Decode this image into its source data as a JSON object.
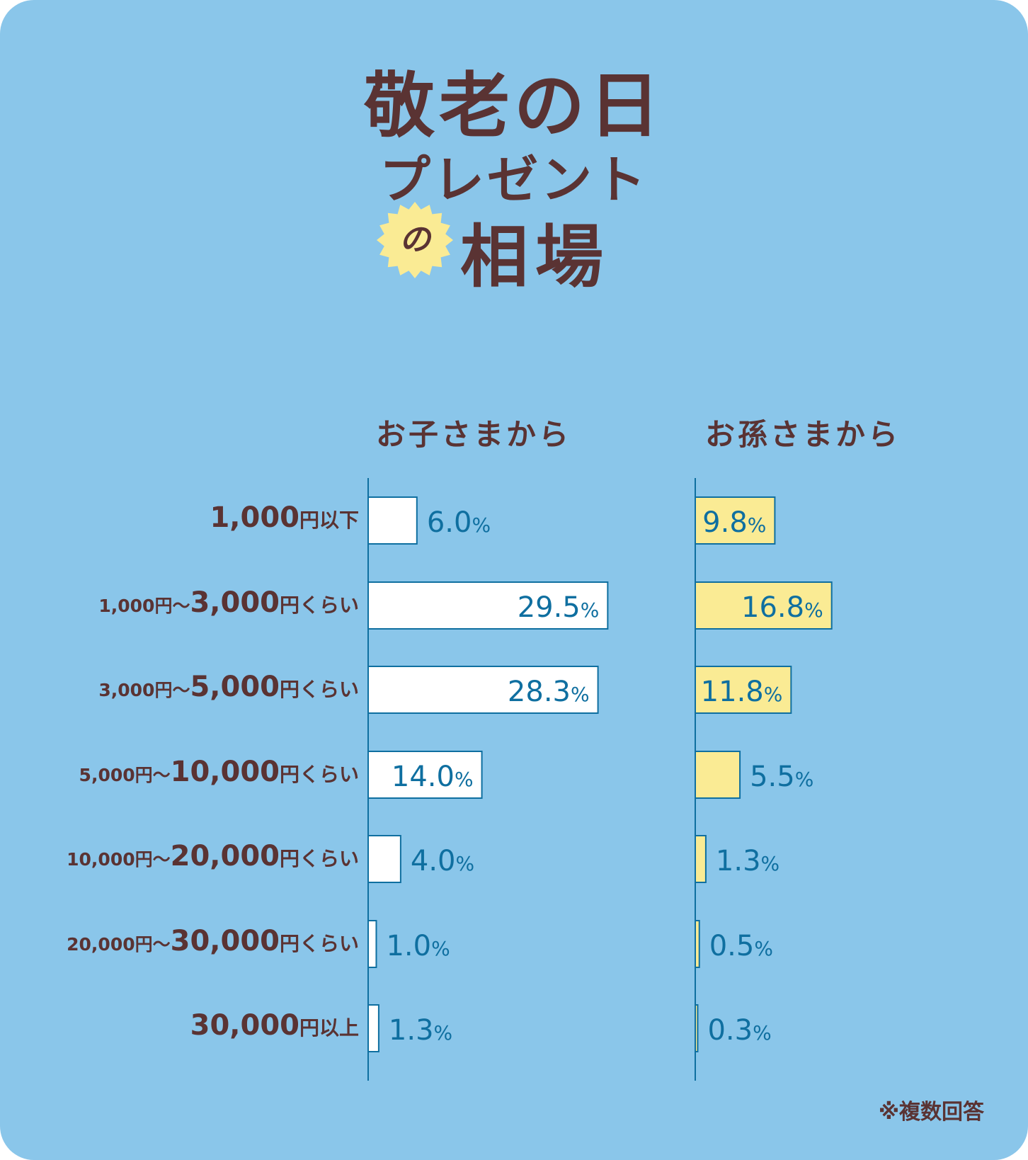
{
  "title": {
    "line1": "敬老の日",
    "line2": "プレゼント",
    "badge": "の",
    "line3": "相場"
  },
  "footnote": "※複数回答",
  "colors": {
    "background": "#8ac6ea",
    "text": "#5a3333",
    "value": "#0f6fa0",
    "children_bar": "#ffffff",
    "grandchildren_bar": "#faeb94",
    "axis": "#0f6fa0"
  },
  "chart_data": {
    "type": "bar",
    "orientation": "horizontal",
    "categories": [
      "1,000円以下",
      "1,000円〜3,000円くらい",
      "3,000円〜5,000円くらい",
      "5,000円〜10,000円くらい",
      "10,000円〜20,000円くらい",
      "20,000円〜30,000円くらい",
      "30,000円以上"
    ],
    "category_parts": [
      {
        "pre": "",
        "main": "1,000",
        "post": "円以下"
      },
      {
        "pre": "1,000円〜",
        "main": "3,000",
        "post": "円くらい"
      },
      {
        "pre": "3,000円〜",
        "main": "5,000",
        "post": "円くらい"
      },
      {
        "pre": "5,000円〜",
        "main": "10,000",
        "post": "円くらい"
      },
      {
        "pre": "10,000円〜",
        "main": "20,000",
        "post": "円くらい"
      },
      {
        "pre": "20,000円〜",
        "main": "30,000",
        "post": "円くらい"
      },
      {
        "pre": "",
        "main": "30,000",
        "post": "円以上"
      }
    ],
    "series": [
      {
        "name": "お子さまから",
        "values": [
          6.0,
          29.5,
          28.3,
          14.0,
          4.0,
          1.0,
          1.3
        ]
      },
      {
        "name": "お孫さまから",
        "values": [
          9.8,
          16.8,
          11.8,
          5.5,
          1.3,
          0.5,
          0.3
        ]
      }
    ],
    "unit": "%"
  }
}
